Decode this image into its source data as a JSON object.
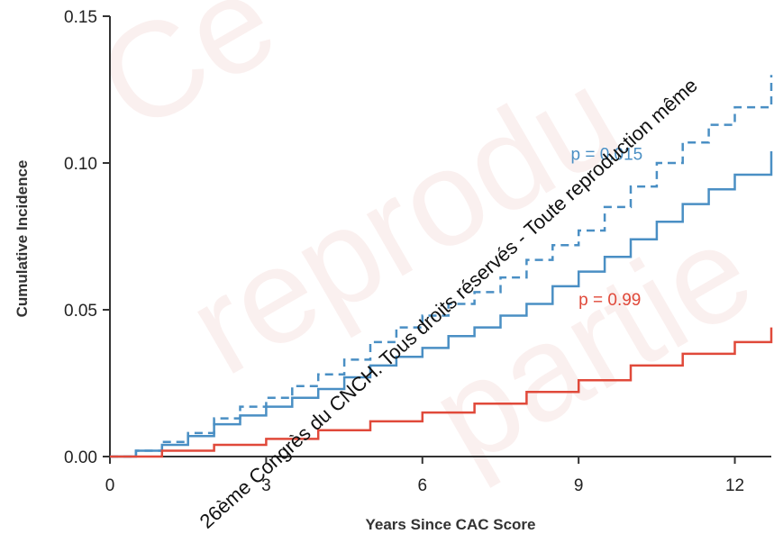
{
  "chart_data": {
    "type": "line",
    "xlabel": "Years Since CAC Score",
    "ylabel": "Cumulative Incidence",
    "xlim": [
      0,
      12.7
    ],
    "ylim": [
      0,
      0.15
    ],
    "x_ticks": [
      "0",
      "3",
      "6",
      "9",
      "12"
    ],
    "y_ticks": [
      "0.00",
      "0.05",
      "0.10",
      "0.15"
    ],
    "x_tick_values": [
      0,
      3,
      6,
      9,
      12
    ],
    "y_tick_values": [
      0,
      0.05,
      0.1,
      0.15
    ],
    "grid": false,
    "series": [
      {
        "color": "#4a8fc4",
        "style": "dashed",
        "x": [
          0,
          0.5,
          1,
          1.5,
          2,
          2.5,
          3,
          3.5,
          4,
          4.5,
          5,
          5.5,
          6,
          6.5,
          7,
          7.5,
          8,
          8.5,
          9,
          9.5,
          10,
          10.5,
          11,
          11.5,
          12,
          12.7
        ],
        "y": [
          0,
          0.002,
          0.005,
          0.008,
          0.013,
          0.017,
          0.02,
          0.024,
          0.028,
          0.033,
          0.039,
          0.044,
          0.048,
          0.052,
          0.056,
          0.061,
          0.067,
          0.072,
          0.077,
          0.085,
          0.092,
          0.1,
          0.107,
          0.113,
          0.119,
          0.13
        ]
      },
      {
        "color": "#4a8fc4",
        "style": "solid",
        "x": [
          0,
          0.5,
          1,
          1.5,
          2,
          2.5,
          3,
          3.5,
          4,
          4.5,
          5,
          5.5,
          6,
          6.5,
          7,
          7.5,
          8,
          8.5,
          9,
          9.5,
          10,
          10.5,
          11,
          11.5,
          12,
          12.7
        ],
        "y": [
          0,
          0.002,
          0.004,
          0.007,
          0.011,
          0.014,
          0.017,
          0.02,
          0.023,
          0.027,
          0.031,
          0.034,
          0.037,
          0.041,
          0.044,
          0.048,
          0.052,
          0.058,
          0.063,
          0.068,
          0.074,
          0.08,
          0.086,
          0.091,
          0.096,
          0.104
        ]
      },
      {
        "color": "#e0493a",
        "style": "solid",
        "x": [
          0,
          1,
          2,
          3,
          4,
          5,
          6,
          7,
          8,
          9,
          10,
          11,
          12,
          12.7
        ],
        "y": [
          0,
          0.002,
          0.004,
          0.006,
          0.009,
          0.012,
          0.015,
          0.018,
          0.022,
          0.026,
          0.031,
          0.035,
          0.039,
          0.044
        ]
      }
    ],
    "annotations": [
      {
        "text": "p = 0.015",
        "color": "#4a8fc4",
        "x": 8.85,
        "y": 0.101
      },
      {
        "text": "p = 0.99",
        "color": "#e0493a",
        "x": 9.0,
        "y": 0.0515
      }
    ]
  },
  "watermark": {
    "big": [
      "Ce",
      "reprodu",
      "partie"
    ],
    "diagonal": "26ème Congrès du CNCH. Tous droits réservés - Toute reproduction même"
  }
}
